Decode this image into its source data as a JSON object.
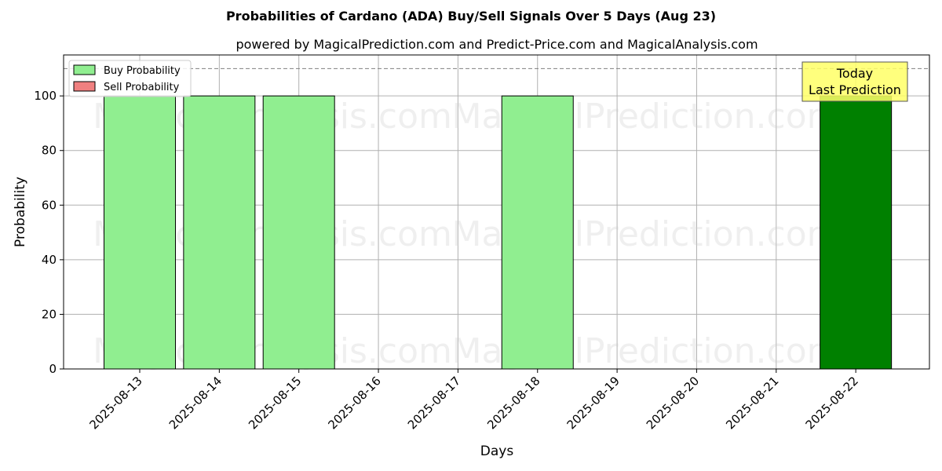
{
  "chart_data": {
    "type": "bar",
    "title": "Probabilities of Cardano (ADA) Buy/Sell Signals Over 5 Days (Aug 23)",
    "subtitle": "powered by MagicalPrediction.com and Predict-Price.com and MagicalAnalysis.com",
    "xlabel": "Days",
    "ylabel": "Probability",
    "ylim": [
      0,
      115
    ],
    "yticks": [
      0,
      20,
      40,
      60,
      80,
      100
    ],
    "categories": [
      "2025-08-13",
      "2025-08-14",
      "2025-08-15",
      "2025-08-16",
      "2025-08-17",
      "2025-08-18",
      "2025-08-19",
      "2025-08-20",
      "2025-08-21",
      "2025-08-22"
    ],
    "series": [
      {
        "name": "Buy Probability",
        "color": "#90ee90",
        "values": [
          100,
          100,
          100,
          0,
          0,
          100,
          0,
          0,
          0,
          0
        ]
      },
      {
        "name": "Sell Probability",
        "color": "#f08080",
        "values": [
          0,
          0,
          0,
          0,
          0,
          0,
          0,
          0,
          0,
          0
        ]
      },
      {
        "name": "",
        "color": "#008000",
        "values": [
          0,
          0,
          0,
          0,
          0,
          0,
          0,
          0,
          0,
          100
        ]
      }
    ],
    "reference_line": {
      "y": 110,
      "style": "dashed",
      "color": "#808080"
    },
    "annotation": {
      "lines": [
        "Today",
        "Last Prediction"
      ],
      "category": "2025-08-22",
      "background": "#ffff66"
    },
    "legend": {
      "position": "top-left"
    },
    "grid": true,
    "watermarks": [
      "MagicalAnalysis.com",
      "MagicalPrediction.com"
    ]
  }
}
